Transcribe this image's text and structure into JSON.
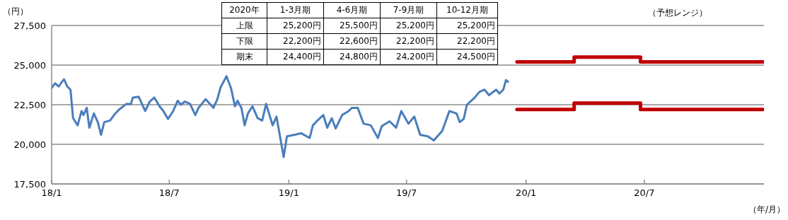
{
  "chart_data": {
    "type": "line",
    "ylabel": "（円）",
    "xlabel": "（年/月）",
    "xlim": [
      "2018-01-01",
      "2021-01-01"
    ],
    "xticks": [
      {
        "value": "2018-01-01",
        "label": "18/1"
      },
      {
        "value": "2018-07-01",
        "label": "18/7"
      },
      {
        "value": "2019-01-01",
        "label": "19/1"
      },
      {
        "value": "2019-07-01",
        "label": "19/7"
      },
      {
        "value": "2020-01-01",
        "label": "20/1"
      },
      {
        "value": "2020-07-01",
        "label": "20/7"
      }
    ],
    "ylim": [
      17500,
      27500
    ],
    "yticks": [
      {
        "value": 17500,
        "label": "17,500"
      },
      {
        "value": 20000,
        "label": "20,000"
      },
      {
        "value": 22500,
        "label": "22,500"
      },
      {
        "value": 25000,
        "label": "25,000"
      },
      {
        "value": 27500,
        "label": "27,500"
      }
    ],
    "grid": "y",
    "marker": "none",
    "series": [
      {
        "color": "#4a7ebb",
        "x": [
          "2018-01-01",
          "2018-01-06",
          "2018-01-12",
          "2018-01-17",
          "2018-01-20",
          "2018-01-25",
          "2018-01-30",
          "2018-02-03",
          "2018-02-10",
          "2018-02-16",
          "2018-02-19",
          "2018-02-24",
          "2018-02-28",
          "2018-03-07",
          "2018-03-13",
          "2018-03-18",
          "2018-03-23",
          "2018-04-01",
          "2018-04-07",
          "2018-04-15",
          "2018-04-26",
          "2018-05-03",
          "2018-05-06",
          "2018-05-15",
          "2018-05-25",
          "2018-06-01",
          "2018-06-08",
          "2018-06-16",
          "2018-06-22",
          "2018-06-29",
          "2018-07-07",
          "2018-07-14",
          "2018-07-19",
          "2018-07-25",
          "2018-08-02",
          "2018-08-10",
          "2018-08-15",
          "2018-08-26",
          "2018-09-07",
          "2018-09-13",
          "2018-09-18",
          "2018-09-27",
          "2018-10-04",
          "2018-10-10",
          "2018-10-14",
          "2018-10-20",
          "2018-10-25",
          "2018-10-30",
          "2018-11-06",
          "2018-11-14",
          "2018-11-21",
          "2018-11-27",
          "2018-12-07",
          "2018-12-13",
          "2018-12-16",
          "2018-12-21",
          "2018-12-24",
          "2018-12-29",
          "2019-01-10",
          "2019-01-20",
          "2019-02-02",
          "2019-02-07",
          "2019-02-14",
          "2019-02-23",
          "2019-03-01",
          "2019-03-08",
          "2019-03-14",
          "2019-03-24",
          "2019-04-03",
          "2019-04-08",
          "2019-04-17",
          "2019-04-26",
          "2019-05-07",
          "2019-05-18",
          "2019-05-24",
          "2019-06-05",
          "2019-06-15",
          "2019-06-23",
          "2019-07-04",
          "2019-07-13",
          "2019-07-22",
          "2019-08-03",
          "2019-08-12",
          "2019-08-25",
          "2019-09-05",
          "2019-09-16",
          "2019-09-21",
          "2019-09-27",
          "2019-10-02",
          "2019-10-14",
          "2019-10-21",
          "2019-10-29",
          "2019-11-05",
          "2019-11-16",
          "2019-11-21",
          "2019-11-27",
          "2019-12-01",
          "2019-12-04"
        ],
        "values": [
          23550,
          23850,
          23650,
          23950,
          24100,
          23650,
          23450,
          21650,
          21200,
          22100,
          21850,
          22300,
          21050,
          21950,
          21400,
          20600,
          21400,
          21500,
          21850,
          22200,
          22550,
          22550,
          22950,
          23000,
          22100,
          22700,
          22950,
          22400,
          22100,
          21600,
          22100,
          22750,
          22500,
          22700,
          22550,
          21850,
          22300,
          22850,
          22300,
          22850,
          23600,
          24300,
          23550,
          22400,
          22750,
          22300,
          21200,
          21950,
          22400,
          21650,
          21500,
          22550,
          21200,
          21750,
          21050,
          19900,
          19200,
          20500,
          20600,
          20700,
          20400,
          21200,
          21500,
          21850,
          21050,
          21650,
          21000,
          21850,
          22100,
          22300,
          22300,
          21300,
          21200,
          20400,
          21150,
          21450,
          21050,
          22100,
          21300,
          21750,
          20600,
          20500,
          20250,
          20850,
          22100,
          21950,
          21400,
          21600,
          22500,
          22950,
          23300,
          23450,
          23100,
          23450,
          23200,
          23450,
          24050,
          23950
        ]
      },
      {
        "type": "step",
        "color": "#c00000",
        "x": [
          "2019-12-18",
          "2020-03-15",
          "2020-06-25",
          "2020-12-31"
        ],
        "values": [
          25200,
          25500,
          25200,
          25200
        ]
      },
      {
        "type": "step",
        "color": "#c00000",
        "x": [
          "2019-12-18",
          "2020-03-15",
          "2020-06-25",
          "2020-12-31"
        ],
        "values": [
          22200,
          22600,
          22200,
          22200
        ]
      }
    ],
    "annotations": [
      "（予想レンジ）",
      "2020年",
      "1-3月期",
      "4-6月期",
      "7-9月期",
      "10-12月期",
      "上限",
      "25,200円",
      "25,500円",
      "25,200円",
      "25,200円",
      "下限",
      "22,200円",
      "22,600円",
      "22,200円",
      "22,200円",
      "期末",
      "24,400円",
      "24,800円",
      "24,200円",
      "24,500円"
    ]
  }
}
